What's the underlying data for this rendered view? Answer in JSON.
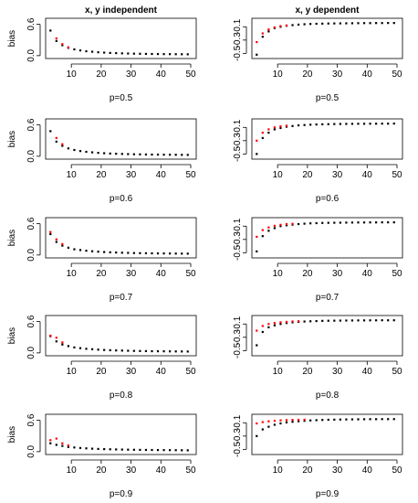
{
  "chart_data": [
    {
      "type": "scatter",
      "title": "x, y independent",
      "xlabel": "p=0.5",
      "ylabel": "bias",
      "xlim": [
        2,
        50
      ],
      "ylim": [
        -0.02,
        0.68
      ],
      "xticks": [
        10,
        20,
        30,
        40,
        50
      ],
      "yticks": [
        0.0,
        0.6
      ],
      "ytick_labels": [
        "0.0",
        "0.6"
      ],
      "grid": false,
      "series": [
        {
          "color": "#000000",
          "x": [
            3,
            5,
            7,
            9,
            11,
            13,
            15,
            17,
            19,
            21,
            23,
            25,
            27,
            29,
            31,
            33,
            35,
            37,
            39,
            41,
            43,
            45,
            47,
            49
          ],
          "y": [
            0.48,
            0.28,
            0.2,
            0.15,
            0.12,
            0.1,
            0.085,
            0.075,
            0.065,
            0.058,
            0.052,
            0.048,
            0.044,
            0.041,
            0.038,
            0.036,
            0.034,
            0.032,
            0.031,
            0.03,
            0.029,
            0.028,
            0.027,
            0.026
          ]
        },
        {
          "color": "#ff0000",
          "x": [
            5,
            7,
            9
          ],
          "y": [
            0.33,
            0.22,
            0.16
          ]
        }
      ]
    },
    {
      "type": "scatter",
      "title": "x, y dependent",
      "xlabel": "p=0.5",
      "ylabel": "",
      "xlim": [
        2,
        50
      ],
      "ylim": [
        -0.55,
        0
      ],
      "xticks": [
        10,
        20,
        30,
        40,
        50
      ],
      "yticks": [
        -0.1,
        -0.3,
        -0.5
      ],
      "ytick_labels": [
        "-0.1",
        "-0.3",
        "-0.5"
      ],
      "grid": false,
      "series": [
        {
          "color": "#000000",
          "x": [
            3,
            5,
            7,
            9,
            11,
            13,
            15,
            17,
            19,
            21,
            23,
            25,
            27,
            29,
            31,
            33,
            35,
            37,
            39,
            41,
            43,
            45,
            47,
            49
          ],
          "y": [
            -0.52,
            -0.25,
            -0.17,
            -0.12,
            -0.1,
            -0.085,
            -0.075,
            -0.068,
            -0.062,
            -0.058,
            -0.055,
            -0.053,
            -0.051,
            -0.05,
            -0.049,
            -0.048,
            -0.047,
            -0.046,
            -0.045,
            -0.045,
            -0.044,
            -0.044,
            -0.043,
            -0.043
          ]
        },
        {
          "color": "#ff0000",
          "x": [
            3,
            5,
            7,
            9,
            11,
            13
          ],
          "y": [
            -0.33,
            -0.2,
            -0.14,
            -0.11,
            -0.09,
            -0.08
          ]
        }
      ]
    },
    {
      "type": "scatter",
      "title": "",
      "xlabel": "p=0.6",
      "ylabel": "bias",
      "xlim": [
        2,
        50
      ],
      "ylim": [
        -0.02,
        0.68
      ],
      "xticks": [
        10,
        20,
        30,
        40,
        50
      ],
      "yticks": [
        0.0,
        0.6
      ],
      "ytick_labels": [
        "0.0",
        "0.6"
      ],
      "grid": false,
      "series": [
        {
          "color": "#000000",
          "x": [
            3,
            5,
            7,
            9,
            11,
            13,
            15,
            17,
            19,
            21,
            23,
            25,
            27,
            29,
            31,
            33,
            35,
            37,
            39,
            41,
            43,
            45,
            47,
            49
          ],
          "y": [
            0.48,
            0.28,
            0.2,
            0.15,
            0.12,
            0.1,
            0.085,
            0.075,
            0.065,
            0.058,
            0.052,
            0.048,
            0.044,
            0.041,
            0.038,
            0.036,
            0.034,
            0.032,
            0.031,
            0.03,
            0.029,
            0.028,
            0.027,
            0.026
          ]
        },
        {
          "color": "#ff0000",
          "x": [
            5,
            7
          ],
          "y": [
            0.35,
            0.23
          ]
        }
      ]
    },
    {
      "type": "scatter",
      "title": "",
      "xlabel": "p=0.6",
      "ylabel": "",
      "xlim": [
        2,
        50
      ],
      "ylim": [
        -0.55,
        0
      ],
      "xticks": [
        10,
        20,
        30,
        40,
        50
      ],
      "yticks": [
        -0.1,
        -0.3,
        -0.5
      ],
      "ytick_labels": [
        "-0.1",
        "-0.3",
        "-0.5"
      ],
      "grid": false,
      "series": [
        {
          "color": "#000000",
          "x": [
            3,
            5,
            7,
            9,
            11,
            13,
            15,
            17,
            19,
            21,
            23,
            25,
            27,
            29,
            31,
            33,
            35,
            37,
            39,
            41,
            43,
            45,
            47,
            49
          ],
          "y": [
            -0.5,
            -0.26,
            -0.18,
            -0.13,
            -0.11,
            -0.09,
            -0.08,
            -0.07,
            -0.065,
            -0.06,
            -0.057,
            -0.054,
            -0.052,
            -0.05,
            -0.049,
            -0.048,
            -0.047,
            -0.046,
            -0.046,
            -0.045,
            -0.045,
            -0.044,
            -0.044,
            -0.043
          ]
        },
        {
          "color": "#ff0000",
          "x": [
            3,
            5,
            7,
            9,
            11,
            13
          ],
          "y": [
            -0.3,
            -0.18,
            -0.13,
            -0.1,
            -0.085,
            -0.075
          ]
        }
      ]
    },
    {
      "type": "scatter",
      "title": "",
      "xlabel": "p=0.7",
      "ylabel": "bias",
      "xlim": [
        2,
        50
      ],
      "ylim": [
        -0.02,
        0.68
      ],
      "xticks": [
        10,
        20,
        30,
        40,
        50
      ],
      "yticks": [
        0.0,
        0.6
      ],
      "ytick_labels": [
        "0.0",
        "0.6"
      ],
      "grid": false,
      "series": [
        {
          "color": "#000000",
          "x": [
            3,
            5,
            7,
            9,
            11,
            13,
            15,
            17,
            19,
            21,
            23,
            25,
            27,
            29,
            31,
            33,
            35,
            37,
            39,
            41,
            43,
            45,
            47,
            49
          ],
          "y": [
            0.4,
            0.25,
            0.18,
            0.14,
            0.11,
            0.095,
            0.082,
            0.072,
            0.064,
            0.057,
            0.052,
            0.048,
            0.044,
            0.041,
            0.038,
            0.036,
            0.034,
            0.032,
            0.031,
            0.03,
            0.029,
            0.028,
            0.027,
            0.026
          ]
        },
        {
          "color": "#ff0000",
          "x": [
            3,
            5,
            7
          ],
          "y": [
            0.44,
            0.3,
            0.21
          ]
        }
      ]
    },
    {
      "type": "scatter",
      "title": "",
      "xlabel": "p=0.7",
      "ylabel": "",
      "xlim": [
        2,
        50
      ],
      "ylim": [
        -0.55,
        0
      ],
      "xticks": [
        10,
        20,
        30,
        40,
        50
      ],
      "yticks": [
        -0.1,
        -0.3,
        -0.5
      ],
      "ytick_labels": [
        "-0.1",
        "-0.3",
        "-0.5"
      ],
      "grid": false,
      "series": [
        {
          "color": "#000000",
          "x": [
            3,
            5,
            7,
            9,
            11,
            13,
            15,
            17,
            19,
            21,
            23,
            25,
            27,
            29,
            31,
            33,
            35,
            37,
            39,
            41,
            43,
            45,
            47,
            49
          ],
          "y": [
            -0.48,
            -0.25,
            -0.17,
            -0.13,
            -0.1,
            -0.088,
            -0.077,
            -0.069,
            -0.063,
            -0.058,
            -0.055,
            -0.052,
            -0.05,
            -0.049,
            -0.048,
            -0.047,
            -0.046,
            -0.045,
            -0.045,
            -0.044,
            -0.044,
            -0.043,
            -0.043,
            -0.043
          ]
        },
        {
          "color": "#ff0000",
          "x": [
            3,
            5,
            7,
            9,
            11,
            13,
            15
          ],
          "y": [
            -0.26,
            -0.16,
            -0.12,
            -0.095,
            -0.08,
            -0.07,
            -0.065
          ]
        }
      ]
    },
    {
      "type": "scatter",
      "title": "",
      "xlabel": "p=0.8",
      "ylabel": "bias",
      "xlim": [
        2,
        50
      ],
      "ylim": [
        -0.02,
        0.68
      ],
      "xticks": [
        10,
        20,
        30,
        40,
        50
      ],
      "yticks": [
        0.0,
        0.6
      ],
      "ytick_labels": [
        "0.0",
        "0.6"
      ],
      "grid": false,
      "series": [
        {
          "color": "#000000",
          "x": [
            3,
            5,
            7,
            9,
            11,
            13,
            15,
            17,
            19,
            21,
            23,
            25,
            27,
            29,
            31,
            33,
            35,
            37,
            39,
            41,
            43,
            45,
            47,
            49
          ],
          "y": [
            0.32,
            0.22,
            0.16,
            0.13,
            0.105,
            0.09,
            0.078,
            0.07,
            0.062,
            0.056,
            0.051,
            0.047,
            0.044,
            0.041,
            0.038,
            0.036,
            0.034,
            0.032,
            0.031,
            0.03,
            0.029,
            0.028,
            0.027,
            0.026
          ]
        },
        {
          "color": "#ff0000",
          "x": [
            3,
            5,
            7
          ],
          "y": [
            0.33,
            0.29,
            0.2
          ]
        }
      ]
    },
    {
      "type": "scatter",
      "title": "",
      "xlabel": "p=0.8",
      "ylabel": "",
      "xlim": [
        2,
        50
      ],
      "ylim": [
        -0.55,
        0
      ],
      "xticks": [
        10,
        20,
        30,
        40,
        50
      ],
      "yticks": [
        -0.1,
        -0.3,
        -0.5
      ],
      "ytick_labels": [
        "-0.1",
        "-0.3",
        "-0.5"
      ],
      "grid": false,
      "series": [
        {
          "color": "#000000",
          "x": [
            3,
            5,
            7,
            9,
            11,
            13,
            15,
            17,
            19,
            21,
            23,
            25,
            27,
            29,
            31,
            33,
            35,
            37,
            39,
            41,
            43,
            45,
            47,
            49
          ],
          "y": [
            -0.42,
            -0.22,
            -0.15,
            -0.12,
            -0.1,
            -0.085,
            -0.075,
            -0.068,
            -0.063,
            -0.059,
            -0.056,
            -0.053,
            -0.051,
            -0.05,
            -0.049,
            -0.048,
            -0.047,
            -0.046,
            -0.046,
            -0.045,
            -0.045,
            -0.044,
            -0.044,
            -0.044
          ]
        },
        {
          "color": "#ff0000",
          "x": [
            3,
            5,
            7,
            9,
            11,
            13,
            15,
            17
          ],
          "y": [
            -0.2,
            -0.13,
            -0.1,
            -0.085,
            -0.075,
            -0.068,
            -0.062,
            -0.058
          ]
        }
      ]
    },
    {
      "type": "scatter",
      "title": "",
      "xlabel": "p=0.9",
      "ylabel": "bias",
      "xlim": [
        2,
        50
      ],
      "ylim": [
        -0.02,
        0.68
      ],
      "xticks": [
        10,
        20,
        30,
        40,
        50
      ],
      "yticks": [
        0.0,
        0.6
      ],
      "ytick_labels": [
        "0.0",
        "0.6"
      ],
      "grid": false,
      "series": [
        {
          "color": "#000000",
          "x": [
            3,
            5,
            7,
            9,
            11,
            13,
            15,
            17,
            19,
            21,
            23,
            25,
            27,
            29,
            31,
            33,
            35,
            37,
            39,
            41,
            43,
            45,
            47,
            49
          ],
          "y": [
            0.16,
            0.13,
            0.11,
            0.09,
            0.08,
            0.07,
            0.063,
            0.057,
            0.052,
            0.048,
            0.045,
            0.042,
            0.04,
            0.038,
            0.036,
            0.034,
            0.033,
            0.032,
            0.031,
            0.03,
            0.029,
            0.028,
            0.027,
            0.026
          ]
        },
        {
          "color": "#ff0000",
          "x": [
            3,
            5,
            7,
            9
          ],
          "y": [
            0.22,
            0.25,
            0.16,
            0.12
          ]
        }
      ]
    },
    {
      "type": "scatter",
      "title": "",
      "xlabel": "p=0.9",
      "ylabel": "",
      "xlim": [
        2,
        50
      ],
      "ylim": [
        -0.55,
        0
      ],
      "xticks": [
        10,
        20,
        30,
        40,
        50
      ],
      "yticks": [
        -0.1,
        -0.3,
        -0.5
      ],
      "ytick_labels": [
        "-0.1",
        "-0.3",
        "-0.5"
      ],
      "grid": false,
      "series": [
        {
          "color": "#000000",
          "x": [
            3,
            5,
            7,
            9,
            11,
            13,
            15,
            17,
            19,
            21,
            23,
            25,
            27,
            29,
            31,
            33,
            35,
            37,
            39,
            41,
            43,
            45,
            47,
            49
          ],
          "y": [
            -0.3,
            -0.2,
            -0.16,
            -0.13,
            -0.11,
            -0.095,
            -0.085,
            -0.077,
            -0.07,
            -0.065,
            -0.061,
            -0.058,
            -0.055,
            -0.053,
            -0.051,
            -0.05,
            -0.049,
            -0.048,
            -0.047,
            -0.046,
            -0.046,
            -0.045,
            -0.045,
            -0.045
          ]
        },
        {
          "color": "#ff0000",
          "x": [
            3,
            5,
            7,
            9,
            11,
            13,
            15,
            17,
            19
          ],
          "y": [
            -0.11,
            -0.09,
            -0.078,
            -0.07,
            -0.064,
            -0.06,
            -0.057,
            -0.055,
            -0.053
          ]
        }
      ]
    }
  ]
}
